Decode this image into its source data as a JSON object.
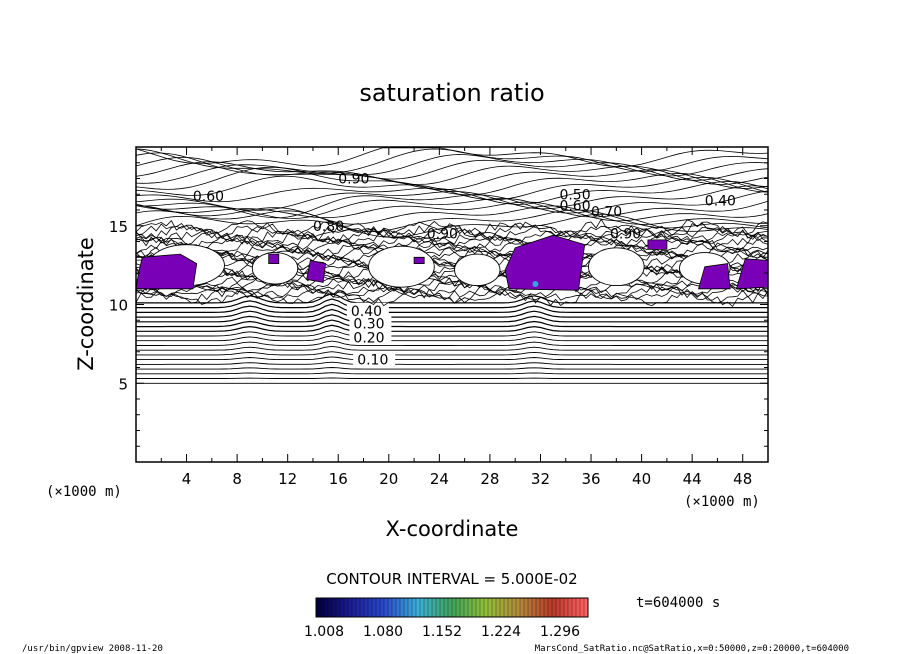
{
  "chart_data": {
    "type": "contour",
    "title": "saturation ratio",
    "xlabel": "X-coordinate",
    "ylabel": "Z-coordinate",
    "x_unit": "(×1000 m)",
    "z_unit": "(×1000 m)",
    "xlim": [
      0,
      50
    ],
    "zlim": [
      0,
      20
    ],
    "x_ticks": [
      4,
      8,
      12,
      16,
      20,
      24,
      28,
      32,
      36,
      40,
      44,
      48
    ],
    "z_ticks": [
      5,
      10,
      15
    ],
    "contour_interval_text": "CONTOUR INTERVAL = 5.000E-02",
    "contour_labels": [
      {
        "text": "0.10",
        "x": 17.5,
        "z": 6.5
      },
      {
        "text": "0.20",
        "x": 17.2,
        "z": 7.9
      },
      {
        "text": "0.30",
        "x": 17.2,
        "z": 8.8
      },
      {
        "text": "0.40",
        "x": 17.0,
        "z": 9.6
      },
      {
        "text": "0.60",
        "x": 4.5,
        "z": 16.9
      },
      {
        "text": "0.90",
        "x": 16.0,
        "z": 18.0
      },
      {
        "text": "0.50",
        "x": 33.5,
        "z": 17.0
      },
      {
        "text": "0.60",
        "x": 33.5,
        "z": 16.3
      },
      {
        "text": "0.70",
        "x": 36.0,
        "z": 15.9
      },
      {
        "text": "0.40",
        "x": 45.0,
        "z": 16.6
      },
      {
        "text": "0.80",
        "x": 14.0,
        "z": 15.0
      },
      {
        "text": "0.90",
        "x": 23.0,
        "z": 14.5
      },
      {
        "text": "0.90",
        "x": 37.5,
        "z": 14.5
      }
    ],
    "shaded_regions_level_min": 1.008,
    "colorbar": {
      "tick_labels": [
        "1.008",
        "1.080",
        "1.152",
        "1.224",
        "1.296"
      ],
      "colors": [
        "#000040",
        "#1e1e96",
        "#2a4ccc",
        "#3cb0d6",
        "#3fa35a",
        "#8fbf3a",
        "#b48a3a",
        "#b83a2a",
        "#ff6060"
      ]
    },
    "time_label": "t=604000 s"
  },
  "footer": {
    "left": "/usr/bin/gpview  2008-11-20",
    "right": "MarsCond_SatRatio.nc@SatRatio,x=0:50000,z=0:20000,t=604000"
  }
}
